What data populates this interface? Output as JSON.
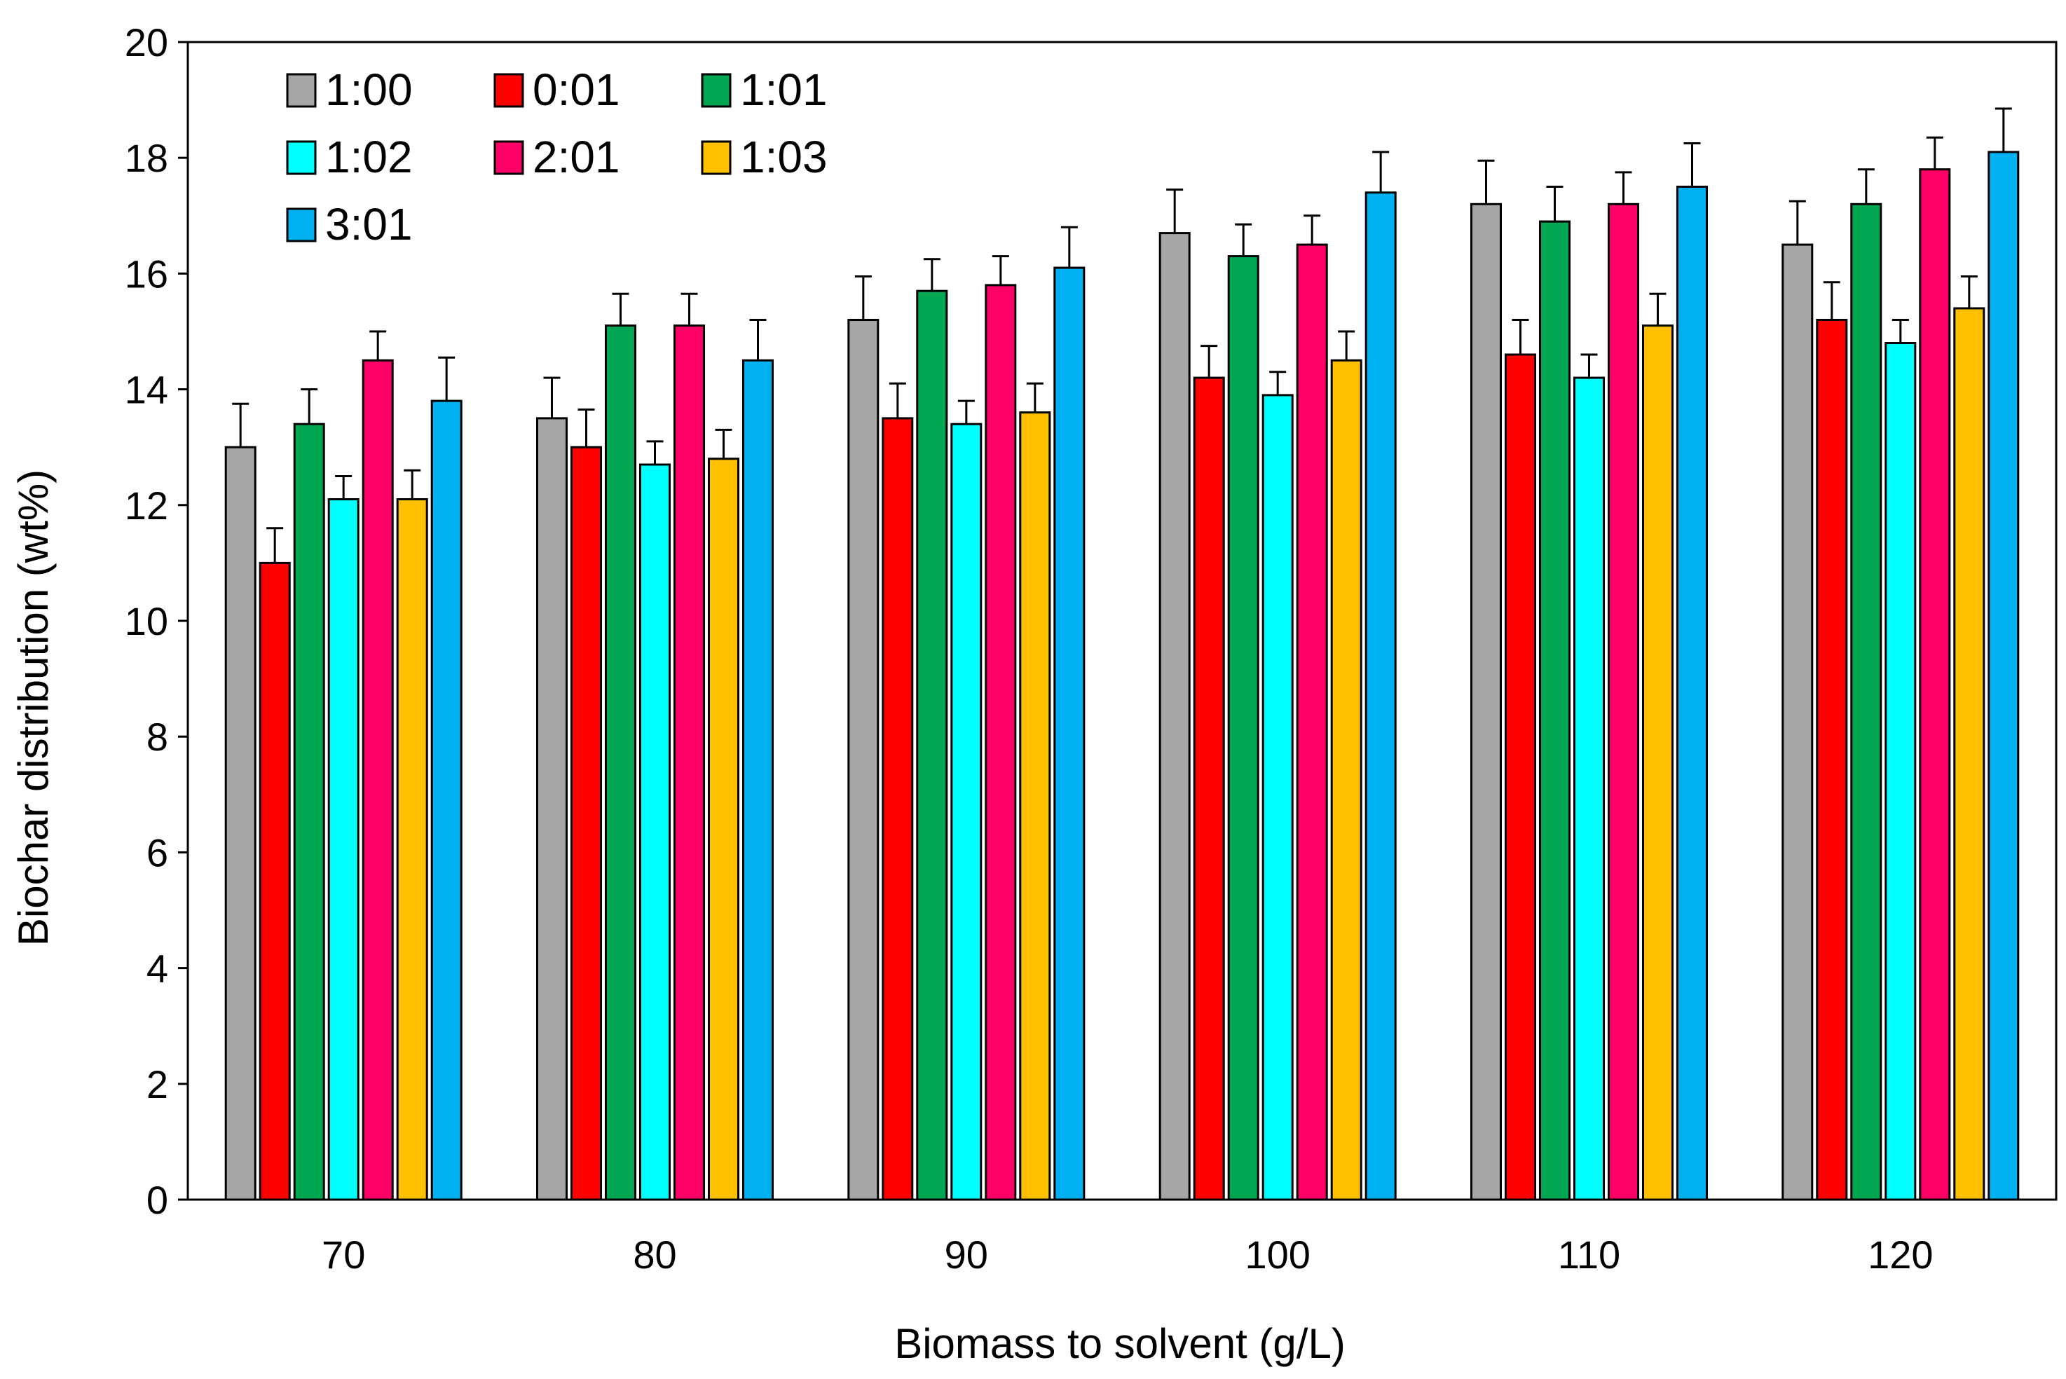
{
  "chart_data": {
    "type": "bar",
    "title": "",
    "xlabel": "Biomass to solvent (g/L)",
    "ylabel": "Biochar distribution (wt%)",
    "ylim": [
      0,
      20
    ],
    "yticks": [
      0,
      2,
      4,
      6,
      8,
      10,
      12,
      14,
      16,
      18,
      20
    ],
    "grid": false,
    "legend_position": "top-left",
    "categories": [
      "70",
      "80",
      "90",
      "100",
      "110",
      "120"
    ],
    "series": [
      {
        "name": "1:00",
        "color": "#a6a6a6",
        "values": [
          13.0,
          13.5,
          15.2,
          16.7,
          17.2,
          16.5
        ],
        "errors": [
          0.75,
          0.7,
          0.75,
          0.75,
          0.75,
          0.75
        ]
      },
      {
        "name": "0:01",
        "color": "#ff0000",
        "values": [
          11.0,
          13.0,
          13.5,
          14.2,
          14.6,
          15.2
        ],
        "errors": [
          0.6,
          0.65,
          0.6,
          0.55,
          0.6,
          0.65
        ]
      },
      {
        "name": "1:01",
        "color": "#00a651",
        "values": [
          13.4,
          15.1,
          15.7,
          16.3,
          16.9,
          17.2
        ],
        "errors": [
          0.6,
          0.55,
          0.55,
          0.55,
          0.6,
          0.6
        ]
      },
      {
        "name": "1:02",
        "color": "#00ffff",
        "values": [
          12.1,
          12.7,
          13.4,
          13.9,
          14.2,
          14.8
        ],
        "errors": [
          0.4,
          0.4,
          0.4,
          0.4,
          0.4,
          0.4
        ]
      },
      {
        "name": "2:01",
        "color": "#ff0066",
        "values": [
          14.5,
          15.1,
          15.8,
          16.5,
          17.2,
          17.8
        ],
        "errors": [
          0.5,
          0.55,
          0.5,
          0.5,
          0.55,
          0.55
        ]
      },
      {
        "name": "1:03",
        "color": "#ffc000",
        "values": [
          12.1,
          12.8,
          13.6,
          14.5,
          15.1,
          15.4
        ],
        "errors": [
          0.5,
          0.5,
          0.5,
          0.5,
          0.55,
          0.55
        ]
      },
      {
        "name": "3:01",
        "color": "#00b0f0",
        "values": [
          13.8,
          14.5,
          16.1,
          17.4,
          17.5,
          18.1
        ],
        "errors": [
          0.75,
          0.7,
          0.7,
          0.7,
          0.75,
          0.75
        ]
      }
    ]
  }
}
